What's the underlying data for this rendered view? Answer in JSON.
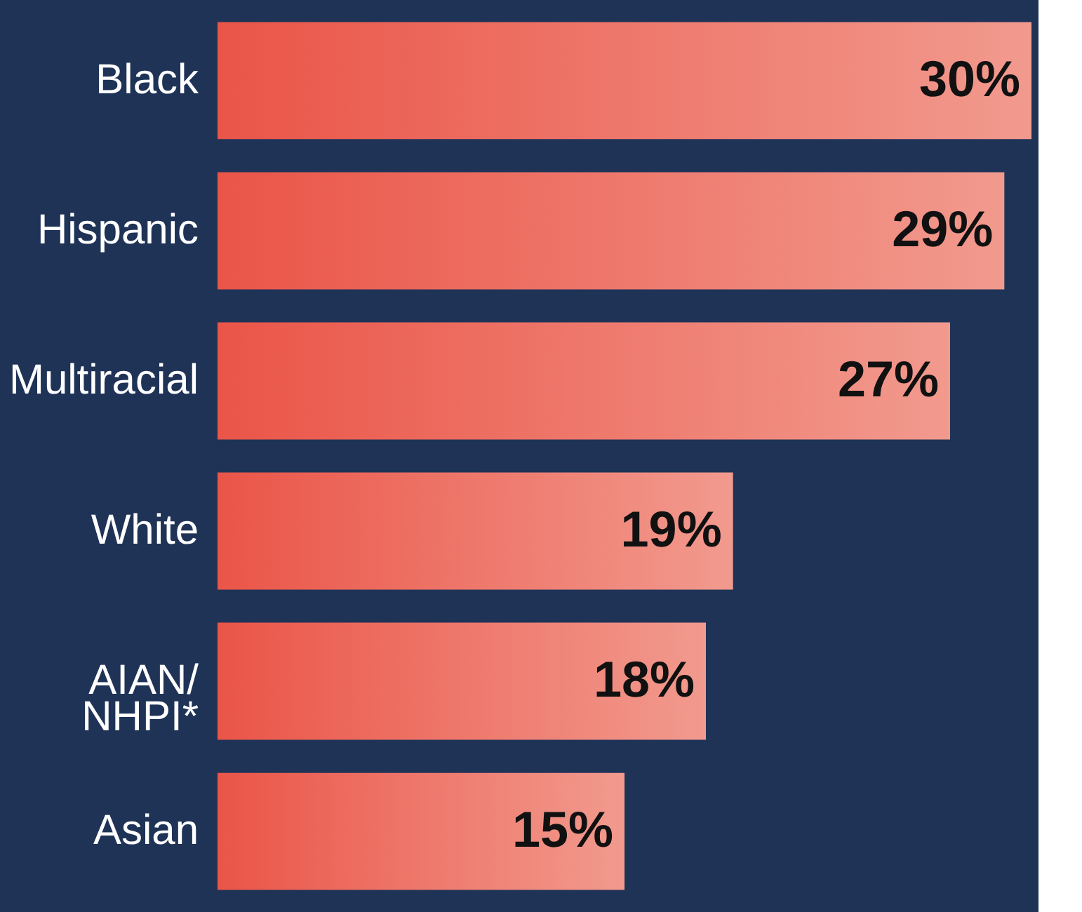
{
  "chart_data": {
    "type": "bar",
    "orientation": "horizontal",
    "categories": [
      "Black",
      "Hispanic",
      "Multiracial",
      "White",
      "AIAN/ NHPI*",
      "Asian"
    ],
    "values": [
      30,
      29,
      27,
      19,
      18,
      15
    ],
    "value_labels": [
      "30%",
      "29%",
      "27%",
      "19%",
      "18%",
      "15%"
    ],
    "color": "#ea5548",
    "grid": false
  }
}
